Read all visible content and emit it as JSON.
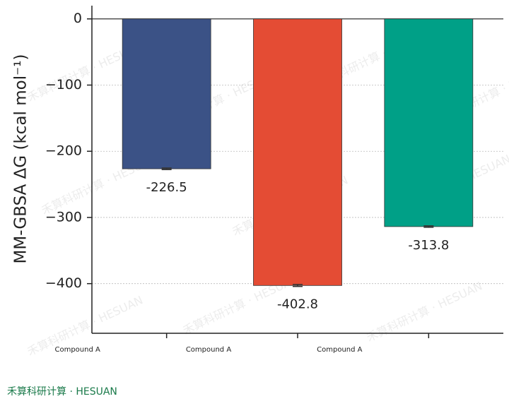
{
  "chart_data": {
    "type": "bar",
    "y_label": "MM-GBSA ΔG (kcal mol⁻¹)",
    "categories": [
      "Compound A",
      "Compound A",
      "Compound A"
    ],
    "values": [
      -226.5,
      -402.8,
      -313.8
    ],
    "errors": [
      1.2,
      1.5,
      1.1
    ],
    "colors": [
      "#3b5286",
      "#e44c34",
      "#00a087"
    ],
    "ylim": [
      -475,
      20
    ],
    "yticks": [
      {
        "value": 0,
        "label": "0"
      },
      {
        "value": -100,
        "label": "−100"
      },
      {
        "value": -200,
        "label": "−200"
      },
      {
        "value": -300,
        "label": "−300"
      },
      {
        "value": -400,
        "label": "−400"
      }
    ],
    "grid": true
  },
  "watermark": "禾算科研计算 · HESUAN",
  "footer": "禾算科研计算 · HESUAN"
}
